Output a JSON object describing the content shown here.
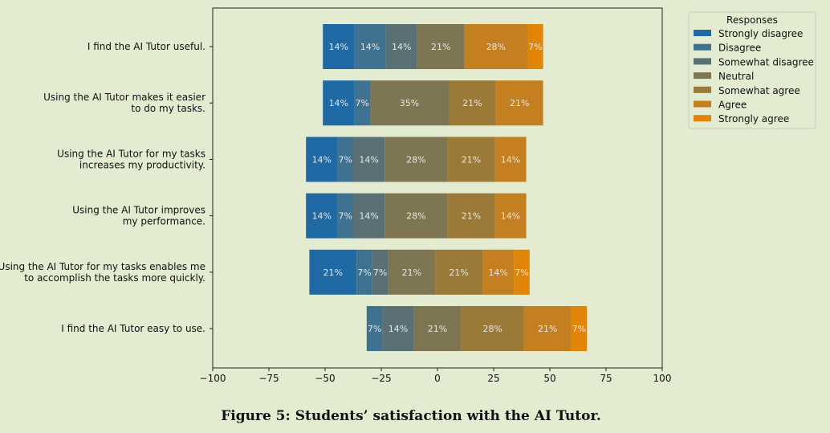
{
  "caption": "Figure 5: Students’ satisfaction with the AI Tutor.",
  "chart_data": {
    "type": "bar",
    "orientation": "horizontal-diverging-stacked",
    "xlim": [
      -100,
      100
    ],
    "xticks": [
      -100,
      -75,
      -50,
      -25,
      0,
      25,
      50,
      75,
      100
    ],
    "xtick_labels": [
      "−100",
      "−75",
      "−50",
      "−25",
      "0",
      "25",
      "50",
      "75",
      "100"
    ],
    "legend_title": "Responses",
    "legend_position": "upper-right-outside",
    "series": [
      {
        "name": "Strongly disagree",
        "color": "#1f6aa5"
      },
      {
        "name": "Disagree",
        "color": "#3f7290"
      },
      {
        "name": "Somewhat disagree",
        "color": "#5a7074"
      },
      {
        "name": "Neutral",
        "color": "#7e7652"
      },
      {
        "name": "Somewhat agree",
        "color": "#9a7a36"
      },
      {
        "name": "Agree",
        "color": "#c47f20"
      },
      {
        "name": "Strongly agree",
        "color": "#e08508"
      }
    ],
    "categories": [
      {
        "label": [
          "I find the AI Tutor useful."
        ],
        "start": -51,
        "segments": [
          {
            "series": 0,
            "value": 14,
            "label": "14%"
          },
          {
            "series": 1,
            "value": 14,
            "label": "14%"
          },
          {
            "series": 2,
            "value": 14,
            "label": "14%"
          },
          {
            "series": 3,
            "value": 21,
            "label": "21%"
          },
          {
            "series": 5,
            "value": 28,
            "label": "28%"
          },
          {
            "series": 6,
            "value": 7,
            "label": "7%"
          }
        ]
      },
      {
        "label": [
          "Using the AI Tutor makes it easier",
          "to do my tasks."
        ],
        "start": -51,
        "segments": [
          {
            "series": 0,
            "value": 14,
            "label": "14%"
          },
          {
            "series": 1,
            "value": 7,
            "label": "7%"
          },
          {
            "series": 3,
            "value": 35,
            "label": "35%"
          },
          {
            "series": 4,
            "value": 21,
            "label": "21%"
          },
          {
            "series": 5,
            "value": 21,
            "label": "21%"
          }
        ]
      },
      {
        "label": [
          "Using the AI Tutor for my tasks",
          "increases my productivity."
        ],
        "start": -58.5,
        "segments": [
          {
            "series": 0,
            "value": 14,
            "label": "14%"
          },
          {
            "series": 1,
            "value": 7,
            "label": "7%"
          },
          {
            "series": 2,
            "value": 14,
            "label": "14%"
          },
          {
            "series": 3,
            "value": 28,
            "label": "28%"
          },
          {
            "series": 4,
            "value": 21,
            "label": "21%"
          },
          {
            "series": 5,
            "value": 14,
            "label": "14%"
          }
        ]
      },
      {
        "label": [
          "Using the AI Tutor improves",
          "my performance."
        ],
        "start": -58.5,
        "segments": [
          {
            "series": 0,
            "value": 14,
            "label": "14%"
          },
          {
            "series": 1,
            "value": 7,
            "label": "7%"
          },
          {
            "series": 2,
            "value": 14,
            "label": "14%"
          },
          {
            "series": 3,
            "value": 28,
            "label": "28%"
          },
          {
            "series": 4,
            "value": 21,
            "label": "21%"
          },
          {
            "series": 5,
            "value": 14,
            "label": "14%"
          }
        ]
      },
      {
        "label": [
          "Using the AI Tutor for my tasks enables me",
          "to accomplish the tasks more quickly."
        ],
        "start": -57,
        "segments": [
          {
            "series": 0,
            "value": 21,
            "label": "21%"
          },
          {
            "series": 1,
            "value": 7,
            "label": "7%"
          },
          {
            "series": 2,
            "value": 7,
            "label": "7%"
          },
          {
            "series": 3,
            "value": 21,
            "label": "21%"
          },
          {
            "series": 4,
            "value": 21,
            "label": "21%"
          },
          {
            "series": 5,
            "value": 14,
            "label": "14%"
          },
          {
            "series": 6,
            "value": 7,
            "label": "7%"
          }
        ]
      },
      {
        "label": [
          "I find the AI Tutor easy to use."
        ],
        "start": -31.5,
        "segments": [
          {
            "series": 1,
            "value": 7,
            "label": "7%"
          },
          {
            "series": 2,
            "value": 14,
            "label": "14%"
          },
          {
            "series": 3,
            "value": 21,
            "label": "21%"
          },
          {
            "series": 4,
            "value": 28,
            "label": "28%"
          },
          {
            "series": 5,
            "value": 21,
            "label": "21%"
          },
          {
            "series": 6,
            "value": 7,
            "label": "7%"
          }
        ]
      }
    ]
  }
}
